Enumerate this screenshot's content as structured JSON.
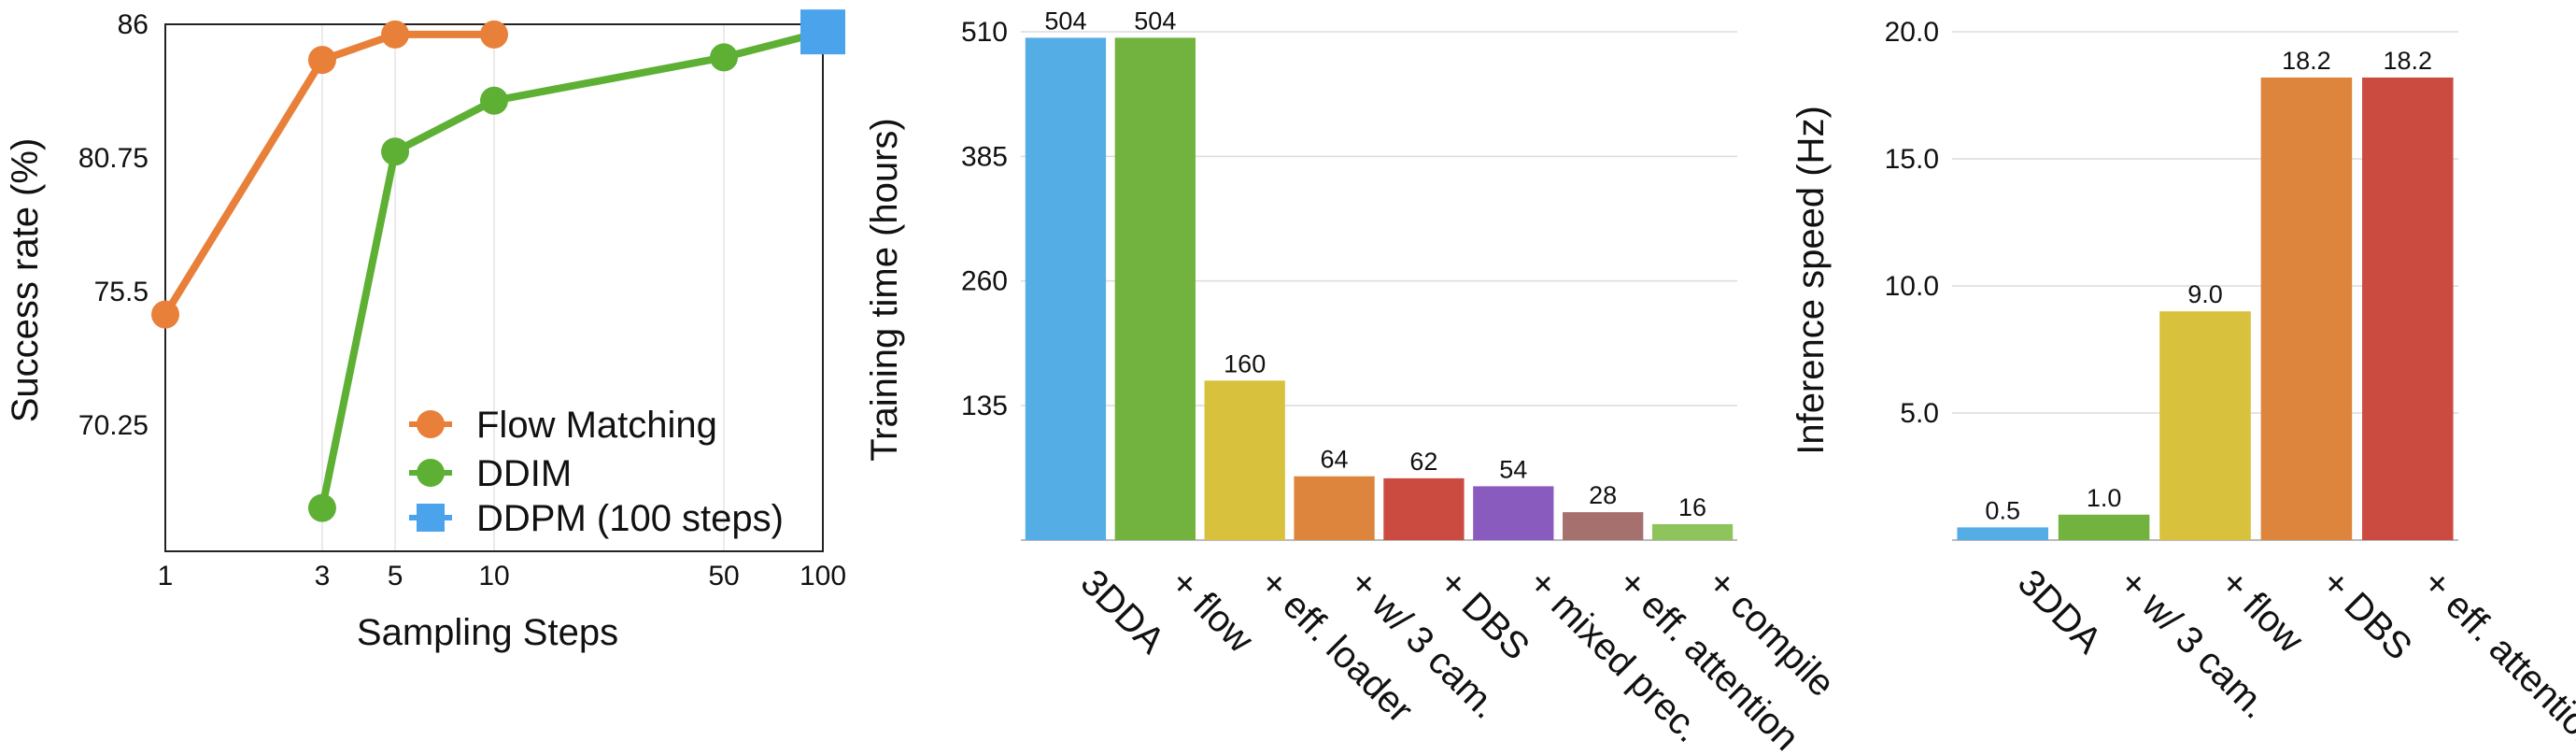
{
  "chart_data": [
    {
      "type": "line",
      "xlabel": "Sampling Steps",
      "ylabel": "Success rate (%)",
      "x_scale": "log",
      "x_ticks": [
        1,
        3,
        5,
        10,
        50,
        100
      ],
      "y_ticks": [
        70.25,
        75.5,
        80.75,
        86
      ],
      "grid": "vertical",
      "legend_position": "bottom-right",
      "series": [
        {
          "name": "Flow Matching",
          "color": "#E8803A",
          "marker": "circle",
          "x": [
            1,
            3,
            5,
            10
          ],
          "y": [
            74.6,
            84.6,
            85.6,
            85.6
          ]
        },
        {
          "name": "DDIM",
          "color": "#5DB034",
          "marker": "circle",
          "x": [
            3,
            5,
            10,
            50,
            100
          ],
          "y": [
            67.0,
            81.0,
            83.0,
            84.7,
            85.7
          ]
        },
        {
          "name": "DDPM (100 steps)",
          "color": "#4BA3EC",
          "marker": "square",
          "x": [
            100
          ],
          "y": [
            85.7
          ]
        }
      ]
    },
    {
      "type": "bar",
      "ylabel": "Training time (hours)",
      "y_ticks": [
        135,
        260,
        385,
        510
      ],
      "ylim": [
        0,
        510
      ],
      "grid": "horizontal",
      "categories": [
        "3DDA",
        "+ flow",
        "+ eff. loader",
        "+ w/ 3 cam.",
        "+ DBS",
        "+ mixed prec.",
        "+ eff. attention",
        "+ compile"
      ],
      "values": [
        504,
        504,
        160,
        64,
        62,
        54,
        28,
        16
      ],
      "labels": [
        "504",
        "504",
        "160",
        "64",
        "62",
        "54",
        "28",
        "16"
      ],
      "colors": [
        "#55ADE5",
        "#72B23F",
        "#D8C13D",
        "#DD843D",
        "#CC4B41",
        "#8A5BBF",
        "#A6706E",
        "#8FC45C"
      ]
    },
    {
      "type": "bar",
      "ylabel": "Inference speed (Hz)",
      "y_ticks": [
        5,
        10,
        15,
        20
      ],
      "y_tick_labels": [
        "5.0",
        "10.0",
        "15.0",
        "20.0"
      ],
      "ylim": [
        0,
        20
      ],
      "grid": "horizontal",
      "categories": [
        "3DDA",
        "+ w/ 3 cam.",
        "+ flow",
        "+ DBS",
        "+ eff. attention"
      ],
      "values": [
        0.5,
        1.0,
        9.0,
        18.2,
        18.2
      ],
      "labels": [
        "0.5",
        "1.0",
        "9.0",
        "18.2",
        "18.2"
      ],
      "colors": [
        "#55ADE5",
        "#72B23F",
        "#D8C13D",
        "#DD843D",
        "#CC4B41"
      ]
    }
  ]
}
